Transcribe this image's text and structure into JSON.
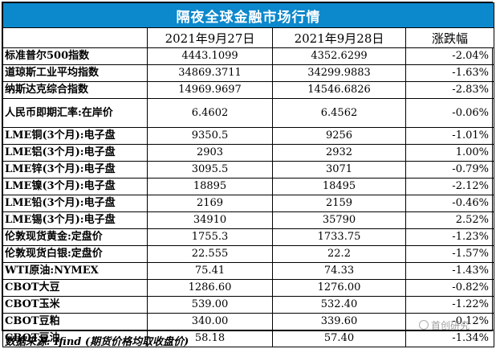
{
  "table": {
    "title": "隔夜全球金融市场行情",
    "headers": [
      "",
      "2021年9月27日",
      "2021年9月28日",
      "涨跌幅"
    ],
    "rows": [
      {
        "name": "标准普尔500指数",
        "v1": "4443.1099",
        "v2": "4352.6299",
        "chg": "-2.04%"
      },
      {
        "name": "道琼斯工业平均指数",
        "v1": "34869.3711",
        "v2": "34299.9883",
        "chg": "-1.63%"
      },
      {
        "name": "纳斯达克综合指数",
        "v1": "14969.9697",
        "v2": "14546.6826",
        "chg": "-2.83%"
      },
      {
        "name": "人民币即期汇率:在岸价",
        "v1": "6.4602",
        "v2": "6.4562",
        "chg": "-0.06%"
      },
      {
        "name": "LME铜(3个月):电子盘",
        "v1": "9350.5",
        "v2": "9256",
        "chg": "-1.01%"
      },
      {
        "name": "LME铝(3个月):电子盘",
        "v1": "2903",
        "v2": "2932",
        "chg": "1.00%"
      },
      {
        "name": "LME锌(3个月):电子盘",
        "v1": "3095.5",
        "v2": "3071",
        "chg": "-0.79%"
      },
      {
        "name": "LME镍(3个月):电子盘",
        "v1": "18895",
        "v2": "18495",
        "chg": "-2.12%"
      },
      {
        "name": "LME铅(3个月):电子盘",
        "v1": "2169",
        "v2": "2159",
        "chg": "-0.46%"
      },
      {
        "name": "LME锡(3个月):电子盘",
        "v1": "34910",
        "v2": "35790",
        "chg": "2.52%"
      },
      {
        "name": "伦敦现货黄金:定盘价",
        "v1": "1755.3",
        "v2": "1733.75",
        "chg": "-1.23%"
      },
      {
        "name": "伦敦现货白银:定盘价",
        "v1": "22.555",
        "v2": "22.2",
        "chg": "-1.57%"
      },
      {
        "name": "WTI原油:NYMEX",
        "v1": "75.41",
        "v2": "74.33",
        "chg": "-1.43%"
      },
      {
        "name": "CBOT大豆",
        "v1": "1286.60",
        "v2": "1276.00",
        "chg": "-0.82%"
      },
      {
        "name": "CBOT玉米",
        "v1": "539.00",
        "v2": "532.40",
        "chg": "-1.22%"
      },
      {
        "name": "CBOT豆粕",
        "v1": "340.00",
        "v2": "339.60",
        "chg": "-0.12%"
      },
      {
        "name": "CBOT豆油",
        "v1": "58.18",
        "v2": "57.40",
        "chg": "-1.34%"
      }
    ]
  },
  "source": "数据来源: Ifind (期货价格均取收盘价)",
  "watermark": "首创研究",
  "colors": {
    "title_bg": "#0c88cc",
    "title_text": "#ffffff"
  }
}
